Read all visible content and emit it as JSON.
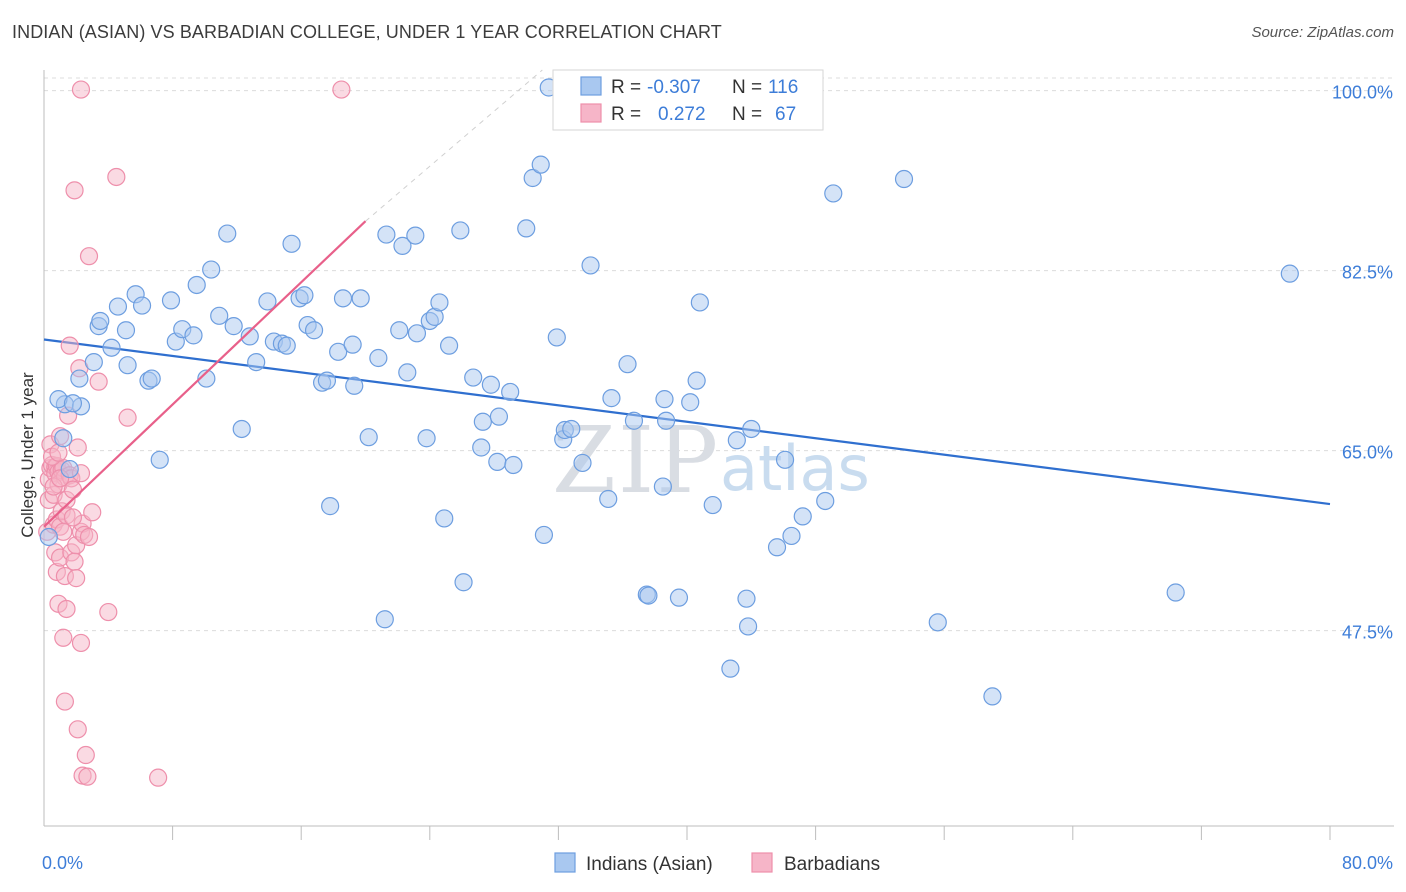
{
  "title": "INDIAN (ASIAN) VS BARBADIAN COLLEGE, UNDER 1 YEAR CORRELATION CHART",
  "source": "Source: ZipAtlas.com",
  "watermark": {
    "zip": "ZIP",
    "atlas": "atlas"
  },
  "colors": {
    "blue_fill": "#a9c8f0",
    "blue_stroke": "#6d9ee0",
    "blue_line": "#2f6fcf",
    "pink_fill": "#f6b5c8",
    "pink_stroke": "#ee8fab",
    "pink_line": "#e8608a",
    "grid": "#dcdcdc",
    "axis_text": "#3d7dd8"
  },
  "legend": {
    "rows": [
      {
        "r_label": "R =",
        "r_value": "-0.307",
        "n_label": "N =",
        "n_value": "116",
        "series": "blue"
      },
      {
        "r_label": "R =",
        "r_value": "0.272",
        "n_label": "N =",
        "n_value": "67",
        "series": "pink"
      }
    ]
  },
  "bottom_legend": [
    "Indians (Asian)",
    "Barbadians"
  ],
  "chart_data": {
    "type": "scatter",
    "title": "INDIAN (ASIAN) VS BARBADIAN COLLEGE, UNDER 1 YEAR CORRELATION CHART",
    "xlabel": "",
    "ylabel": "College, Under 1 year",
    "xlim": [
      0,
      80
    ],
    "ylim": [
      28.5,
      102
    ],
    "x_tick_labels": [
      {
        "value": 0,
        "label": "0.0%"
      },
      {
        "value": 80,
        "label": "80.0%"
      }
    ],
    "x_minor_ticks": [
      8,
      16,
      24,
      32,
      40,
      48,
      56,
      64,
      72,
      80
    ],
    "y_ticks": [
      {
        "value": 100,
        "label": "100.0%"
      },
      {
        "value": 82.5,
        "label": "82.5%"
      },
      {
        "value": 65,
        "label": "65.0%"
      },
      {
        "value": 47.5,
        "label": "47.5%"
      }
    ],
    "series": [
      {
        "name": "Indians (Asian)",
        "color": "blue",
        "R": -0.307,
        "N": 116,
        "trend": {
          "x": [
            0,
            80
          ],
          "y": [
            75.8,
            59.8
          ],
          "extends_dashed": false
        },
        "points": [
          [
            0.3,
            56.6
          ],
          [
            1.2,
            66.2
          ],
          [
            1.3,
            69.5
          ],
          [
            1.6,
            63.2
          ],
          [
            2.3,
            69.3
          ],
          [
            2.2,
            72
          ],
          [
            3.1,
            73.6
          ],
          [
            3.4,
            77.1
          ],
          [
            3.5,
            77.6
          ],
          [
            4.2,
            75
          ],
          [
            4.6,
            79
          ],
          [
            5.1,
            76.7
          ],
          [
            5.2,
            73.3
          ],
          [
            5.7,
            80.2
          ],
          [
            6.1,
            79.1
          ],
          [
            6.5,
            71.8
          ],
          [
            6.7,
            72
          ],
          [
            7.2,
            64.1
          ],
          [
            7.9,
            79.6
          ],
          [
            8.2,
            75.6
          ],
          [
            8.6,
            76.8
          ],
          [
            9.3,
            76.2
          ],
          [
            9.5,
            81.1
          ],
          [
            10.1,
            72
          ],
          [
            10.4,
            82.6
          ],
          [
            10.9,
            78.1
          ],
          [
            11.4,
            86.1
          ],
          [
            11.8,
            77.1
          ],
          [
            12.3,
            67.1
          ],
          [
            12.8,
            76.1
          ],
          [
            13.2,
            73.6
          ],
          [
            13.9,
            79.5
          ],
          [
            14.3,
            75.6
          ],
          [
            14.8,
            75.4
          ],
          [
            15.1,
            75.2
          ],
          [
            15.4,
            85.1
          ],
          [
            15.9,
            79.8
          ],
          [
            16.2,
            80.1
          ],
          [
            16.4,
            77.2
          ],
          [
            16.8,
            76.7
          ],
          [
            17.3,
            71.6
          ],
          [
            17.6,
            71.8
          ],
          [
            17.8,
            59.6
          ],
          [
            18.3,
            74.6
          ],
          [
            18.6,
            79.8
          ],
          [
            19.2,
            75.3
          ],
          [
            19.3,
            71.3
          ],
          [
            19.7,
            79.8
          ],
          [
            20.2,
            66.3
          ],
          [
            20.8,
            74
          ],
          [
            21.2,
            48.6
          ],
          [
            21.3,
            86
          ],
          [
            22.1,
            76.7
          ],
          [
            22.3,
            84.9
          ],
          [
            22.6,
            72.6
          ],
          [
            23.1,
            85.9
          ],
          [
            23.2,
            76.4
          ],
          [
            23.8,
            66.2
          ],
          [
            24,
            77.6
          ],
          [
            24.3,
            78
          ],
          [
            24.6,
            79.4
          ],
          [
            24.9,
            58.4
          ],
          [
            25.2,
            75.2
          ],
          [
            25.9,
            86.4
          ],
          [
            26.1,
            52.2
          ],
          [
            26.7,
            72.1
          ],
          [
            27.2,
            65.3
          ],
          [
            27.3,
            67.8
          ],
          [
            27.8,
            71.4
          ],
          [
            28.2,
            63.9
          ],
          [
            28.3,
            68.3
          ],
          [
            29,
            70.7
          ],
          [
            29.2,
            63.6
          ],
          [
            30,
            86.6
          ],
          [
            30.4,
            91.5
          ],
          [
            30.9,
            92.8
          ],
          [
            31.1,
            56.8
          ],
          [
            31.4,
            100.3
          ],
          [
            31.9,
            76
          ],
          [
            32.3,
            66.1
          ],
          [
            32.4,
            67
          ],
          [
            32.8,
            67.1
          ],
          [
            33.5,
            63.8
          ],
          [
            34,
            83
          ],
          [
            35.1,
            60.3
          ],
          [
            35.3,
            70.1
          ],
          [
            36.3,
            73.4
          ],
          [
            36.7,
            67.9
          ],
          [
            37.5,
            51
          ],
          [
            37.6,
            50.9
          ],
          [
            38.5,
            61.5
          ],
          [
            38.6,
            70
          ],
          [
            38.7,
            67.9
          ],
          [
            39.5,
            50.7
          ],
          [
            40.2,
            69.7
          ],
          [
            40.6,
            71.8
          ],
          [
            40.8,
            79.4
          ],
          [
            41.6,
            59.7
          ],
          [
            42.7,
            43.8
          ],
          [
            43.1,
            66
          ],
          [
            43.7,
            50.6
          ],
          [
            43.8,
            47.9
          ],
          [
            44,
            67.1
          ],
          [
            45.6,
            55.6
          ],
          [
            46.1,
            64.1
          ],
          [
            46.5,
            56.7
          ],
          [
            47.2,
            58.6
          ],
          [
            48.6,
            60.1
          ],
          [
            49.1,
            90
          ],
          [
            53.5,
            91.4
          ],
          [
            55.6,
            48.3
          ],
          [
            59,
            41.1
          ],
          [
            70.4,
            51.2
          ],
          [
            77.5,
            82.2
          ],
          [
            0.9,
            70
          ],
          [
            1.8,
            69.6
          ]
        ]
      },
      {
        "name": "Barbadians",
        "color": "pink",
        "R": 0.272,
        "N": 67,
        "trend": {
          "x": [
            0,
            20
          ],
          "y": [
            57.6,
            87.3
          ],
          "dashed_extension": {
            "x": [
              20,
              31
            ],
            "y": [
              87.3,
              102
            ]
          }
        },
        "points": [
          [
            0.2,
            57.1
          ],
          [
            0.3,
            60.2
          ],
          [
            0.3,
            62.2
          ],
          [
            0.4,
            65.6
          ],
          [
            0.4,
            63.3
          ],
          [
            0.5,
            63.6
          ],
          [
            0.6,
            57.8
          ],
          [
            0.6,
            60.7
          ],
          [
            0.7,
            55.1
          ],
          [
            0.7,
            63.4
          ],
          [
            0.7,
            62.8
          ],
          [
            0.8,
            63.5
          ],
          [
            0.8,
            58.3
          ],
          [
            0.8,
            53.2
          ],
          [
            0.9,
            62.9
          ],
          [
            0.9,
            50.1
          ],
          [
            0.9,
            61.7
          ],
          [
            1,
            66.4
          ],
          [
            1,
            57.6
          ],
          [
            1,
            54.6
          ],
          [
            1.1,
            59.1
          ],
          [
            1.1,
            63.1
          ],
          [
            1.2,
            46.8
          ],
          [
            1.2,
            63.3
          ],
          [
            1.2,
            57.1
          ],
          [
            1.3,
            40.6
          ],
          [
            1.3,
            52.8
          ],
          [
            1.3,
            62.4
          ],
          [
            1.4,
            49.6
          ],
          [
            1.4,
            60.2
          ],
          [
            1.5,
            68.4
          ],
          [
            1.6,
            75.2
          ],
          [
            1.6,
            62.6
          ],
          [
            1.7,
            55.1
          ],
          [
            1.7,
            62.3
          ],
          [
            1.8,
            61.2
          ],
          [
            1.9,
            54.2
          ],
          [
            1.9,
            90.3
          ],
          [
            2,
            52.6
          ],
          [
            2,
            55.8
          ],
          [
            2.1,
            65.3
          ],
          [
            2.1,
            37.9
          ],
          [
            2.2,
            73
          ],
          [
            2.3,
            46.3
          ],
          [
            2.3,
            57.1
          ],
          [
            2.3,
            100.1
          ],
          [
            2.4,
            33.4
          ],
          [
            2.4,
            57.9
          ],
          [
            2.5,
            56.8
          ],
          [
            2.6,
            35.4
          ],
          [
            2.7,
            33.3
          ],
          [
            2.8,
            56.6
          ],
          [
            2.8,
            83.9
          ],
          [
            3,
            59
          ],
          [
            3.4,
            71.7
          ],
          [
            4,
            49.3
          ],
          [
            4.5,
            91.6
          ],
          [
            5.2,
            68.2
          ],
          [
            7.1,
            33.2
          ],
          [
            18.5,
            100.1
          ],
          [
            0.5,
            64.4
          ],
          [
            0.6,
            61.5
          ],
          [
            1,
            62.3
          ],
          [
            1.4,
            58.7
          ],
          [
            0.9,
            64.8
          ],
          [
            2.3,
            62.8
          ],
          [
            1.8,
            58.5
          ]
        ]
      }
    ]
  }
}
